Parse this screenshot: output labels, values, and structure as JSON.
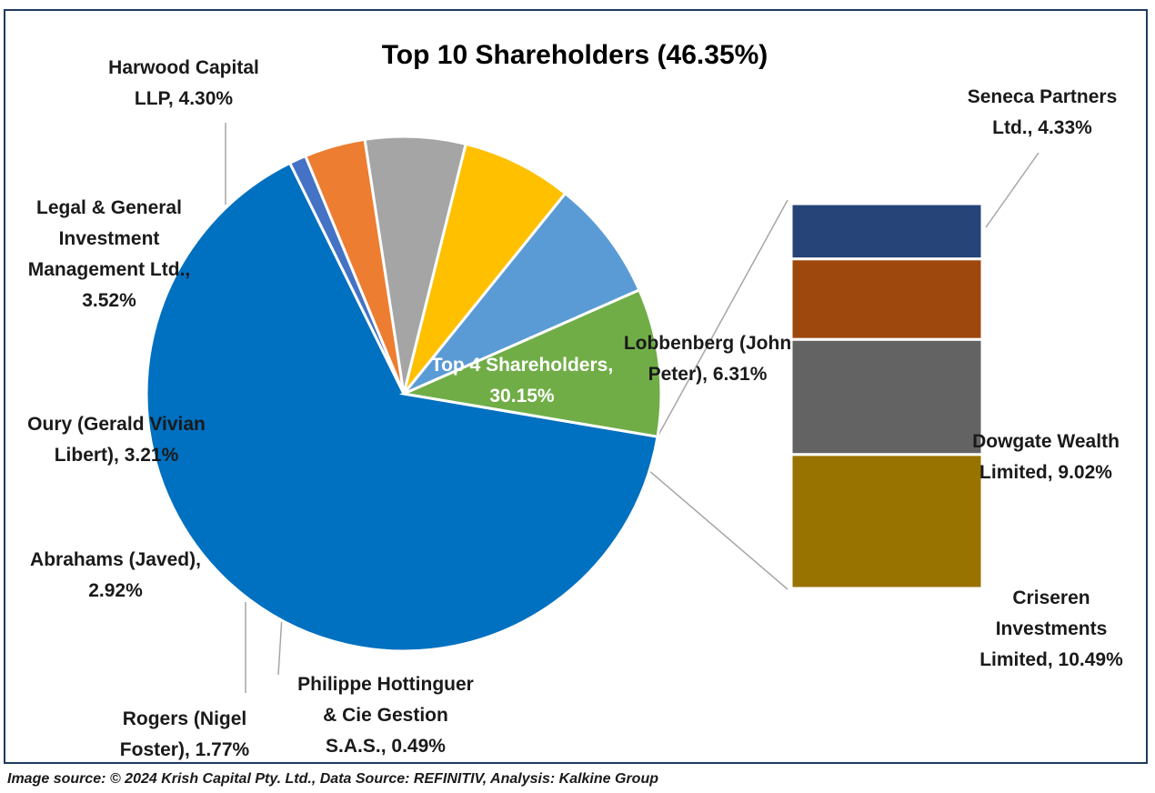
{
  "chart_data": {
    "type": "pie",
    "subtype": "pie-of-bar",
    "title": "Top 10 Shareholders (46.35%)",
    "slices": [
      {
        "label": [
          "Top 4 Shareholders,",
          "30.15%"
        ],
        "value": 30.15,
        "color": "#0070c0",
        "group": "main"
      },
      {
        "label": [
          "Philippe Hottinguer",
          "& Cie Gestion",
          "S.A.S., 0.49%"
        ],
        "value": 0.49,
        "color": "#4472c4",
        "group": "main"
      },
      {
        "label": [
          "Rogers (Nigel",
          "Foster), 1.77%"
        ],
        "value": 1.77,
        "color": "#ed7d31",
        "group": "main"
      },
      {
        "label": [
          "Abrahams (Javed),",
          "2.92%"
        ],
        "value": 2.92,
        "color": "#a5a5a5",
        "group": "main"
      },
      {
        "label": [
          "Oury (Gerald Vivian",
          "Libert), 3.21%"
        ],
        "value": 3.21,
        "color": "#ffc000",
        "group": "main"
      },
      {
        "label": [
          "Legal & General",
          "Investment",
          "Management Ltd.,",
          "3.52%"
        ],
        "value": 3.52,
        "color": "#5b9bd5",
        "group": "main"
      },
      {
        "label": [
          "Harwood Capital",
          "LLP, 4.30%"
        ],
        "value": 4.3,
        "color": "#70ad47",
        "group": "main"
      }
    ],
    "bar_breakdown": [
      {
        "label": [
          "Seneca Partners",
          "Ltd., 4.33%"
        ],
        "value": 4.33,
        "color": "#264478"
      },
      {
        "label": [
          "Lobbenberg (John",
          "Peter), 6.31%"
        ],
        "value": 6.31,
        "color": "#9e480e"
      },
      {
        "label": [
          "Dowgate Wealth",
          "Limited, 9.02%"
        ],
        "value": 9.02,
        "color": "#636363"
      },
      {
        "label": [
          "Criseren",
          "Investments",
          "Limited, 10.49%"
        ],
        "value": 10.49,
        "color": "#997300"
      }
    ]
  },
  "source_note": "Image source: © 2024 Krish Capital Pty. Ltd., Data Source: REFINITIV, Analysis: Kalkine Group"
}
